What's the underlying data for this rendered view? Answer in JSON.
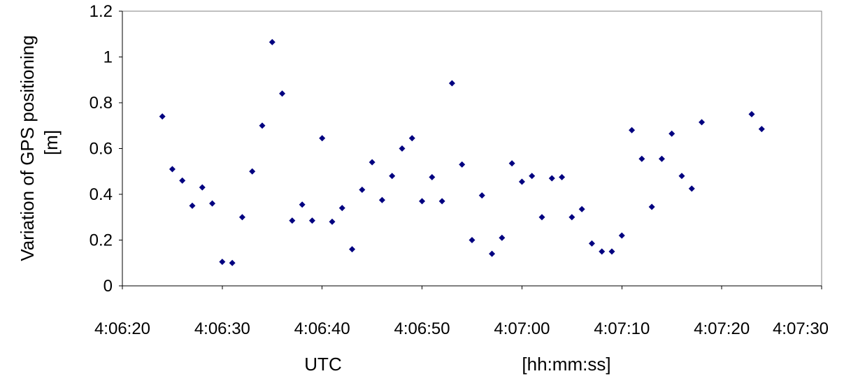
{
  "chart_data": {
    "type": "scatter",
    "title": "",
    "ylabel_line1": "Variation of GPS positioning",
    "ylabel_line2": "[m]",
    "xlabel_left": "UTC",
    "xlabel_right": "[hh:mm:ss]",
    "ylim": [
      0,
      1.2
    ],
    "yticks": [
      0,
      0.2,
      0.4,
      0.6,
      0.8,
      1,
      1.2
    ],
    "ytick_labels": [
      "0",
      "0.2",
      "0.4",
      "0.6",
      "0.8",
      "1",
      "1.2"
    ],
    "xlim": [
      "4:06:20",
      "4:07:30"
    ],
    "xticks": [
      "4:06:20",
      "4:06:30",
      "4:06:40",
      "4:06:50",
      "4:07:00",
      "4:07:10",
      "4:07:20",
      "4:07:30"
    ],
    "marker_color": "#000080",
    "marker": "diamond",
    "grid": false,
    "series": [
      {
        "x": [
          "4:06:24",
          "4:06:25",
          "4:06:26",
          "4:06:27",
          "4:06:28",
          "4:06:29",
          "4:06:30",
          "4:06:31",
          "4:06:32",
          "4:06:33",
          "4:06:34",
          "4:06:35",
          "4:06:36",
          "4:06:37",
          "4:06:38",
          "4:06:39",
          "4:06:40",
          "4:06:41",
          "4:06:42",
          "4:06:43",
          "4:06:44",
          "4:06:45",
          "4:06:46",
          "4:06:47",
          "4:06:48",
          "4:06:49",
          "4:06:50",
          "4:06:51",
          "4:06:52",
          "4:06:53",
          "4:06:54",
          "4:06:55",
          "4:06:56",
          "4:06:57",
          "4:06:58",
          "4:06:59",
          "4:07:00",
          "4:07:01",
          "4:07:02",
          "4:07:03",
          "4:07:04",
          "4:07:05",
          "4:07:06",
          "4:07:07",
          "4:07:08",
          "4:07:09",
          "4:07:10",
          "4:07:11",
          "4:07:12",
          "4:07:13",
          "4:07:14",
          "4:07:15",
          "4:07:16",
          "4:07:17",
          "4:07:18",
          "4:07:23",
          "4:07:24"
        ],
        "y": [
          0.74,
          0.51,
          0.46,
          0.35,
          0.43,
          0.36,
          0.105,
          0.1,
          0.3,
          0.5,
          0.7,
          1.065,
          0.84,
          0.285,
          0.355,
          0.285,
          0.645,
          0.28,
          0.34,
          0.16,
          0.42,
          0.54,
          0.375,
          0.48,
          0.6,
          0.645,
          0.37,
          0.475,
          0.37,
          0.885,
          0.53,
          0.2,
          0.395,
          0.14,
          0.21,
          0.535,
          0.455,
          0.48,
          0.3,
          0.47,
          0.475,
          0.3,
          0.335,
          0.185,
          0.15,
          0.15,
          0.22,
          0.68,
          0.555,
          0.345,
          0.555,
          0.665,
          0.48,
          0.425,
          0.715,
          0.75,
          0.685
        ]
      }
    ]
  }
}
